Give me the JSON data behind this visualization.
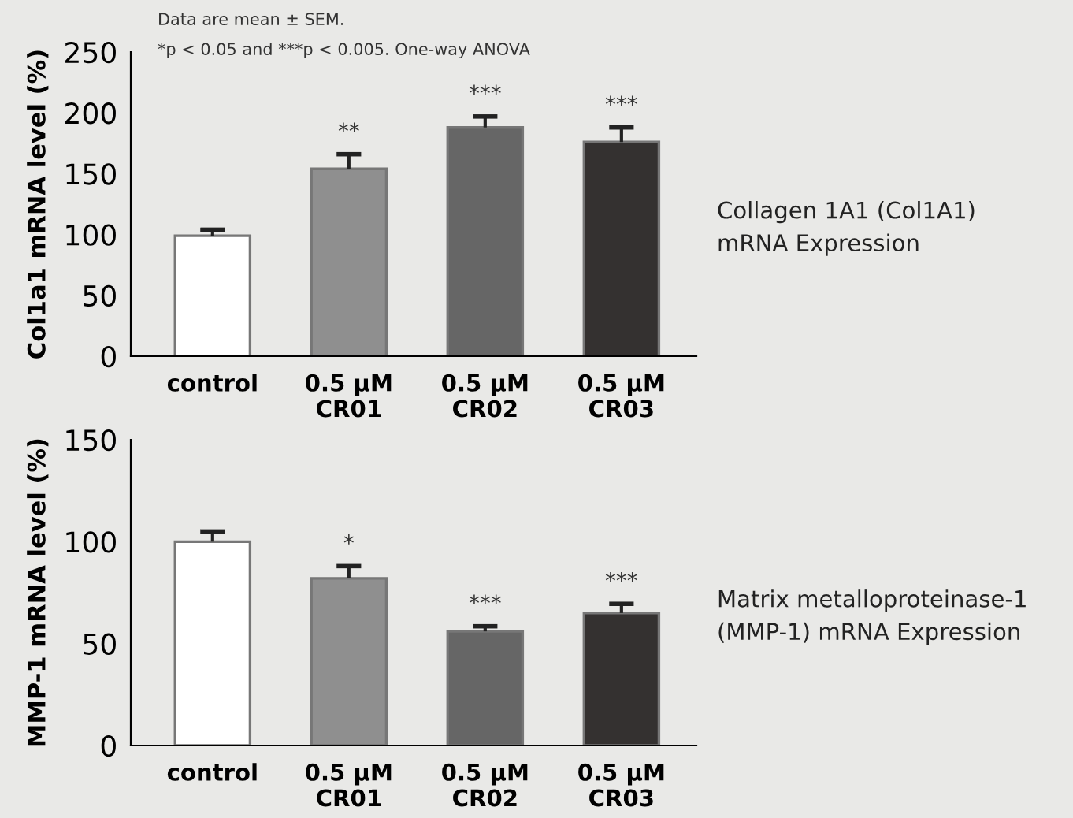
{
  "chart_data": [
    {
      "type": "bar",
      "ylabel": "Col1a1 mRNA level (%)",
      "categories": [
        "control",
        "0.5 µM\nCR01",
        "0.5 µM\nCR02",
        "0.5 µM\nCR03"
      ],
      "values": [
        99,
        154,
        188,
        176
      ],
      "colors": [
        "#ffffff",
        "#8f8f8f",
        "#666666",
        "#343130"
      ],
      "errors": [
        [
          99,
          104
        ],
        [
          154,
          166
        ],
        [
          188,
          197
        ],
        [
          176,
          188
        ]
      ],
      "ylim": [
        0,
        250
      ],
      "yticks": [
        0,
        50,
        100,
        150,
        200,
        250
      ],
      "grid": false,
      "legend": false,
      "annotations": [
        "Data are mean ± SEM.",
        "*p < 0.05 and ***p < 0.005. One-way ANOVA",
        "Collagen 1A1 (Col1A1)\nmRNA Expression",
        {
          "text": "**",
          "x": "0.5 µM\nCR01",
          "y": 166
        },
        {
          "text": "***",
          "x": "0.5 µM\nCR02",
          "y": 197
        },
        {
          "text": "***",
          "x": "0.5 µM\nCR03",
          "y": 188
        }
      ]
    },
    {
      "type": "bar",
      "ylabel": "MMP-1 mRNA level (%)",
      "categories": [
        "control",
        "0.5 µM\nCR01",
        "0.5 µM\nCR02",
        "0.5 µM\nCR03"
      ],
      "values": [
        100,
        82,
        56,
        65
      ],
      "colors": [
        "#ffffff",
        "#8f8f8f",
        "#666666",
        "#343130"
      ],
      "errors": [
        [
          100,
          105
        ],
        [
          82,
          88
        ],
        [
          56,
          58.5
        ],
        [
          65,
          69.5
        ]
      ],
      "ylim": [
        0,
        150
      ],
      "yticks": [
        0,
        50,
        100,
        150
      ],
      "grid": false,
      "legend": false,
      "annotations": [
        "Matrix metalloproteinase-1\n(MMP-1) mRNA Expression",
        {
          "text": "*",
          "x": "0.5 µM\nCR01",
          "y": 88
        },
        {
          "text": "***",
          "x": "0.5 µM\nCR02",
          "y": 58.5
        },
        {
          "text": "***",
          "x": "0.5 µM\nCR03",
          "y": 69.5
        }
      ]
    }
  ]
}
